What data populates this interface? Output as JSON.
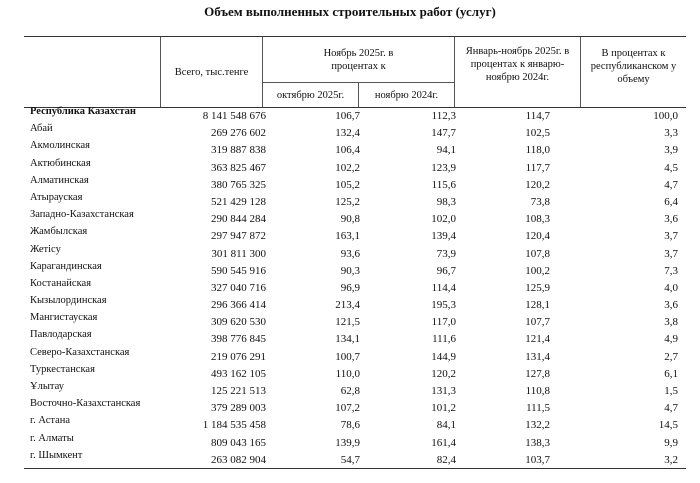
{
  "title": "Объем выполненных строительных работ (услуг)",
  "headers": {
    "total": "Всего, тыс.тенге",
    "nov_group": "Ноябрь 2025г. в процентах к",
    "oct": "октябрю 2025г.",
    "nov24": "ноябрю 2024г.",
    "jan_nov": "Январь-ноябрь 2025г. в процентах к январю-ноябрю 2024г.",
    "share": "В процентах к республиканском у объему"
  },
  "rows": [
    {
      "name": "Республика Казахстан",
      "total": "8 141 548 676",
      "oct": "106,7",
      "nov24": "112,3",
      "jan_nov": "114,7",
      "share": "100,0"
    },
    {
      "name": "Абай",
      "total": "269 276 602",
      "oct": "132,4",
      "nov24": "147,7",
      "jan_nov": "102,5",
      "share": "3,3"
    },
    {
      "name": "Акмолинская",
      "total": "319 887 838",
      "oct": "106,4",
      "nov24": "94,1",
      "jan_nov": "118,0",
      "share": "3,9"
    },
    {
      "name": "Актюбинская",
      "total": "363 825 467",
      "oct": "102,2",
      "nov24": "123,9",
      "jan_nov": "117,7",
      "share": "4,5"
    },
    {
      "name": "Алматинская",
      "total": "380 765 325",
      "oct": "105,2",
      "nov24": "115,6",
      "jan_nov": "120,2",
      "share": "4,7"
    },
    {
      "name": "Атырауская",
      "total": "521 429 128",
      "oct": "125,2",
      "nov24": "98,3",
      "jan_nov": "73,8",
      "share": "6,4"
    },
    {
      "name": "Западно-Казахстанская",
      "total": "290 844 284",
      "oct": "90,8",
      "nov24": "102,0",
      "jan_nov": "108,3",
      "share": "3,6"
    },
    {
      "name": "Жамбылская",
      "total": "297 947 872",
      "oct": "163,1",
      "nov24": "139,4",
      "jan_nov": "120,4",
      "share": "3,7"
    },
    {
      "name": "Жетісу",
      "total": "301 811 300",
      "oct": "93,6",
      "nov24": "73,9",
      "jan_nov": "107,8",
      "share": "3,7"
    },
    {
      "name": "Карагандинская",
      "total": "590 545 916",
      "oct": "90,3",
      "nov24": "96,7",
      "jan_nov": "100,2",
      "share": "7,3"
    },
    {
      "name": "Костанайская",
      "total": "327 040 716",
      "oct": "96,9",
      "nov24": "114,4",
      "jan_nov": "125,9",
      "share": "4,0"
    },
    {
      "name": "Кызылординская",
      "total": "296 366 414",
      "oct": "213,4",
      "nov24": "195,3",
      "jan_nov": "128,1",
      "share": "3,6"
    },
    {
      "name": "Мангистауская",
      "total": "309 620 530",
      "oct": "121,5",
      "nov24": "117,0",
      "jan_nov": "107,7",
      "share": "3,8"
    },
    {
      "name": "Павлодарская",
      "total": "398 776 845",
      "oct": "134,1",
      "nov24": "111,6",
      "jan_nov": "121,4",
      "share": "4,9"
    },
    {
      "name": "Северо-Казахстанская",
      "total": "219 076 291",
      "oct": "100,7",
      "nov24": "144,9",
      "jan_nov": "131,4",
      "share": "2,7"
    },
    {
      "name": "Туркестанская",
      "total": "493 162 105",
      "oct": "110,0",
      "nov24": "120,2",
      "jan_nov": "127,8",
      "share": "6,1"
    },
    {
      "name": "Ұлытау",
      "total": "125 221 513",
      "oct": "62,8",
      "nov24": "131,3",
      "jan_nov": "110,8",
      "share": "1,5"
    },
    {
      "name": "Восточно-Казахстанская",
      "total": "379 289 003",
      "oct": "107,2",
      "nov24": "101,2",
      "jan_nov": "111,5",
      "share": "4,7"
    },
    {
      "name": "г. Астана",
      "total": "1 184 535 458",
      "oct": "78,6",
      "nov24": "84,1",
      "jan_nov": "132,2",
      "share": "14,5"
    },
    {
      "name": "г. Алматы",
      "total": "809 043 165",
      "oct": "139,9",
      "nov24": "161,4",
      "jan_nov": "138,3",
      "share": "9,9"
    },
    {
      "name": "г. Шымкент",
      "total": "263 082 904",
      "oct": "54,7",
      "nov24": "82,4",
      "jan_nov": "103,7",
      "share": "3,2"
    }
  ]
}
